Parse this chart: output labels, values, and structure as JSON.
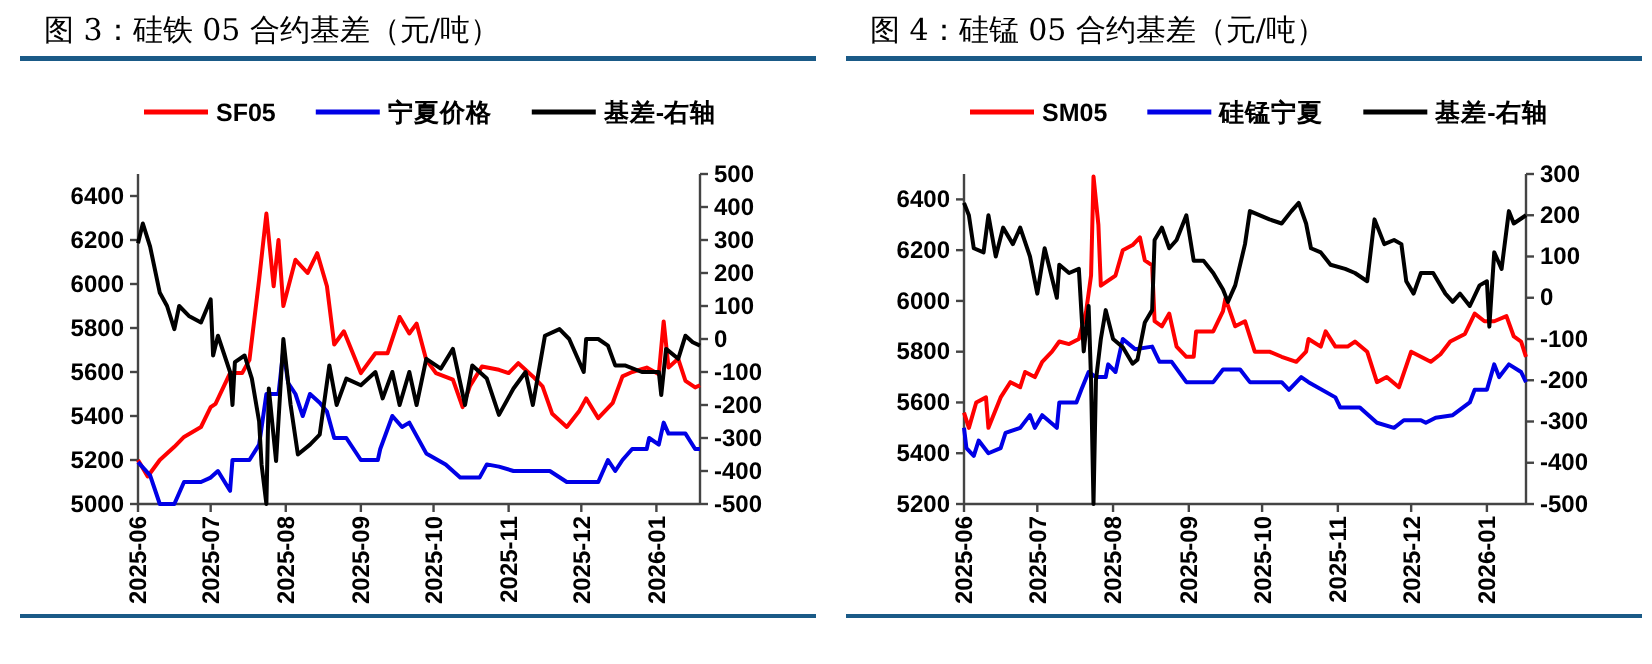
{
  "chart_data": [
    {
      "type": "line",
      "title": "图 3：硅铁 05 合约基差（元/吨）",
      "legend": "top",
      "xlim": [
        "2025-06-01",
        "2026-01-19"
      ],
      "xticks": [
        {
          "value": "2025-06-01",
          "label": "2025-06"
        },
        {
          "value": "2025-07-01",
          "label": "2025-07"
        },
        {
          "value": "2025-08-01",
          "label": "2025-08"
        },
        {
          "value": "2025-09-01",
          "label": "2025-09"
        },
        {
          "value": "2025-10-01",
          "label": "2025-10"
        },
        {
          "value": "2025-11-01",
          "label": "2025-11"
        },
        {
          "value": "2025-12-01",
          "label": "2025-12"
        },
        {
          "value": "2026-01-01",
          "label": "2026-01"
        }
      ],
      "ylim": [
        5000,
        6500
      ],
      "yticks": [
        5000,
        5200,
        5400,
        5600,
        5800,
        6000,
        6200,
        6400
      ],
      "y2lim": [
        -500,
        500
      ],
      "y2ticks": [
        -500,
        -400,
        -300,
        -200,
        -100,
        0,
        100,
        200,
        300,
        400,
        500
      ],
      "series": [
        {
          "name": "SF05",
          "color": "#ff0000",
          "x": [
            "2025-06-01",
            "2025-06-05",
            "2025-06-10",
            "2025-06-16",
            "2025-06-20",
            "2025-06-27",
            "2025-07-01",
            "2025-07-03",
            "2025-07-09",
            "2025-07-14",
            "2025-07-17",
            "2025-07-21",
            "2025-07-24",
            "2025-07-27",
            "2025-07-29",
            "2025-07-31",
            "2025-08-05",
            "2025-08-10",
            "2025-08-14",
            "2025-08-18",
            "2025-08-21",
            "2025-08-25",
            "2025-09-01",
            "2025-09-07",
            "2025-09-12",
            "2025-09-17",
            "2025-09-21",
            "2025-09-24",
            "2025-09-28",
            "2025-10-02",
            "2025-10-09",
            "2025-10-13",
            "2025-10-16",
            "2025-10-21",
            "2025-10-28",
            "2025-11-01",
            "2025-11-05",
            "2025-11-11",
            "2025-11-15",
            "2025-11-19",
            "2025-11-25",
            "2025-11-30",
            "2025-12-03",
            "2025-12-08",
            "2025-12-14",
            "2025-12-18",
            "2025-12-22",
            "2025-12-28",
            "2026-01-02",
            "2026-01-04",
            "2026-01-06",
            "2026-01-10",
            "2026-01-13",
            "2026-01-17",
            "2026-01-19"
          ],
          "values": [
            5200,
            5125,
            5200,
            5260,
            5305,
            5350,
            5440,
            5455,
            5595,
            5595,
            5655,
            6020,
            6320,
            5990,
            6200,
            5900,
            6110,
            6050,
            6140,
            5990,
            5725,
            5785,
            5595,
            5685,
            5685,
            5850,
            5775,
            5820,
            5655,
            5595,
            5565,
            5440,
            5535,
            5625,
            5610,
            5595,
            5640,
            5580,
            5535,
            5410,
            5350,
            5420,
            5480,
            5390,
            5460,
            5580,
            5600,
            5620,
            5590,
            5830,
            5620,
            5660,
            5560,
            5530,
            5540
          ]
        },
        {
          "name": "宁夏价格",
          "color": "#0000e6",
          "x": [
            "2025-06-01",
            "2025-06-06",
            "2025-06-10",
            "2025-06-16",
            "2025-06-20",
            "2025-06-27",
            "2025-07-01",
            "2025-07-04",
            "2025-07-09",
            "2025-07-10",
            "2025-07-17",
            "2025-07-21",
            "2025-07-24",
            "2025-07-29",
            "2025-07-31",
            "2025-08-02",
            "2025-08-05",
            "2025-08-08",
            "2025-08-11",
            "2025-08-15",
            "2025-08-18",
            "2025-08-21",
            "2025-08-26",
            "2025-09-01",
            "2025-09-08",
            "2025-09-09",
            "2025-09-14",
            "2025-09-18",
            "2025-09-21",
            "2025-09-28",
            "2025-10-06",
            "2025-10-12",
            "2025-10-20",
            "2025-10-23",
            "2025-10-28",
            "2025-11-03",
            "2025-11-11",
            "2025-11-18",
            "2025-11-25",
            "2025-12-08",
            "2025-12-12",
            "2025-12-15",
            "2025-12-18",
            "2025-12-22",
            "2025-12-28",
            "2025-12-29",
            "2026-01-02",
            "2026-01-04",
            "2026-01-06",
            "2026-01-13",
            "2026-01-17",
            "2026-01-19"
          ],
          "values": [
            5190,
            5130,
            5000,
            5000,
            5100,
            5100,
            5120,
            5150,
            5060,
            5200,
            5200,
            5270,
            5500,
            5500,
            5700,
            5550,
            5500,
            5400,
            5500,
            5460,
            5420,
            5300,
            5300,
            5200,
            5200,
            5250,
            5400,
            5350,
            5370,
            5230,
            5180,
            5120,
            5120,
            5180,
            5170,
            5150,
            5150,
            5150,
            5100,
            5100,
            5200,
            5150,
            5200,
            5250,
            5250,
            5300,
            5270,
            5370,
            5320,
            5320,
            5250,
            5250
          ]
        },
        {
          "name": "基差-右轴",
          "color": "#000000",
          "axis": "y2",
          "x": [
            "2025-06-01",
            "2025-06-03",
            "2025-06-06",
            "2025-06-10",
            "2025-06-13",
            "2025-06-16",
            "2025-06-18",
            "2025-06-22",
            "2025-06-27",
            "2025-07-01",
            "2025-07-02",
            "2025-07-04",
            "2025-07-09",
            "2025-07-10",
            "2025-07-11",
            "2025-07-15",
            "2025-07-18",
            "2025-07-21",
            "2025-07-22",
            "2025-07-24",
            "2025-07-25",
            "2025-07-28",
            "2025-07-31",
            "2025-08-03",
            "2025-08-06",
            "2025-08-11",
            "2025-08-15",
            "2025-08-19",
            "2025-08-22",
            "2025-08-26",
            "2025-09-01",
            "2025-09-07",
            "2025-09-10",
            "2025-09-14",
            "2025-09-17",
            "2025-09-21",
            "2025-09-24",
            "2025-09-28",
            "2025-10-04",
            "2025-10-09",
            "2025-10-14",
            "2025-10-17",
            "2025-10-23",
            "2025-10-28",
            "2025-11-03",
            "2025-11-08",
            "2025-11-11",
            "2025-11-16",
            "2025-11-22",
            "2025-11-26",
            "2025-12-02",
            "2025-12-03",
            "2025-12-08",
            "2025-12-12",
            "2025-12-15",
            "2025-12-19",
            "2025-12-26",
            "2026-01-02",
            "2026-01-03",
            "2026-01-05",
            "2026-01-10",
            "2026-01-13",
            "2026-01-16",
            "2026-01-19"
          ],
          "values": [
            290,
            350,
            280,
            140,
            100,
            30,
            100,
            70,
            50,
            120,
            -50,
            10,
            -100,
            -200,
            -70,
            -50,
            -120,
            -250,
            -380,
            -500,
            -150,
            -370,
            0,
            -200,
            -350,
            -320,
            -290,
            -80,
            -200,
            -120,
            -140,
            -100,
            -180,
            -100,
            -200,
            -100,
            -200,
            -60,
            -90,
            -30,
            -200,
            -80,
            -120,
            -230,
            -150,
            -100,
            -200,
            10,
            30,
            0,
            -100,
            0,
            0,
            -20,
            -80,
            -80,
            -100,
            -100,
            -170,
            -30,
            -60,
            10,
            -10,
            -20
          ]
        }
      ]
    },
    {
      "type": "line",
      "title": "图 4：硅锰 05 合约基差（元/吨）",
      "legend": "top",
      "xlim": [
        "2025-06-01",
        "2026-01-17"
      ],
      "xticks": [
        {
          "value": "2025-06-01",
          "label": "2025-06"
        },
        {
          "value": "2025-07-01",
          "label": "2025-07"
        },
        {
          "value": "2025-08-01",
          "label": "2025-08"
        },
        {
          "value": "2025-09-01",
          "label": "2025-09"
        },
        {
          "value": "2025-10-01",
          "label": "2025-10"
        },
        {
          "value": "2025-11-01",
          "label": "2025-11"
        },
        {
          "value": "2025-12-01",
          "label": "2025-12"
        },
        {
          "value": "2026-01-01",
          "label": "2026-01"
        }
      ],
      "ylim": [
        5200,
        6500
      ],
      "yticks": [
        5200,
        5400,
        5600,
        5800,
        6000,
        6200,
        6400
      ],
      "y2lim": [
        -500,
        300
      ],
      "y2ticks": [
        -500,
        -400,
        -300,
        -200,
        -100,
        0,
        100,
        200,
        300
      ],
      "series": [
        {
          "name": "SM05",
          "color": "#ff0000",
          "x": [
            "2025-06-01",
            "2025-06-03",
            "2025-06-06",
            "2025-06-10",
            "2025-06-11",
            "2025-06-16",
            "2025-06-20",
            "2025-06-24",
            "2025-06-26",
            "2025-06-30",
            "2025-07-03",
            "2025-07-07",
            "2025-07-10",
            "2025-07-14",
            "2025-07-18",
            "2025-07-21",
            "2025-07-23",
            "2025-07-24",
            "2025-07-26",
            "2025-07-27",
            "2025-07-30",
            "2025-08-02",
            "2025-08-05",
            "2025-08-09",
            "2025-08-12",
            "2025-08-14",
            "2025-08-17",
            "2025-08-18",
            "2025-08-21",
            "2025-08-24",
            "2025-08-27",
            "2025-08-31",
            "2025-09-03",
            "2025-09-04",
            "2025-09-11",
            "2025-09-15",
            "2025-09-16",
            "2025-09-20",
            "2025-09-24",
            "2025-09-28",
            "2025-10-04",
            "2025-10-09",
            "2025-10-15",
            "2025-10-19",
            "2025-10-20",
            "2025-10-25",
            "2025-10-27",
            "2025-10-31",
            "2025-11-05",
            "2025-11-08",
            "2025-11-13",
            "2025-11-17",
            "2025-11-21",
            "2025-11-26",
            "2025-12-01",
            "2025-12-05",
            "2025-12-09",
            "2025-12-13",
            "2025-12-17",
            "2025-12-23",
            "2025-12-27",
            "2025-12-31",
            "2026-01-04",
            "2026-01-09",
            "2026-01-12",
            "2026-01-15",
            "2026-01-17"
          ],
          "values": [
            5560,
            5500,
            5600,
            5620,
            5500,
            5620,
            5680,
            5660,
            5720,
            5700,
            5760,
            5800,
            5840,
            5830,
            5850,
            5960,
            6100,
            6490,
            6300,
            6060,
            6080,
            6100,
            6200,
            6220,
            6250,
            6160,
            6140,
            5920,
            5900,
            5950,
            5820,
            5780,
            5780,
            5880,
            5880,
            5960,
            6010,
            5900,
            5920,
            5800,
            5800,
            5780,
            5760,
            5800,
            5850,
            5820,
            5880,
            5820,
            5820,
            5840,
            5800,
            5680,
            5700,
            5660,
            5800,
            5780,
            5760,
            5790,
            5840,
            5870,
            5950,
            5920,
            5920,
            5940,
            5860,
            5840,
            5780
          ]
        },
        {
          "name": "硅锰宁夏",
          "color": "#0000e6",
          "x": [
            "2025-06-01",
            "2025-06-02",
            "2025-06-05",
            "2025-06-07",
            "2025-06-11",
            "2025-06-16",
            "2025-06-18",
            "2025-06-24",
            "2025-06-28",
            "2025-06-30",
            "2025-07-03",
            "2025-07-09",
            "2025-07-10",
            "2025-07-17",
            "2025-07-19",
            "2025-07-22",
            "2025-07-25",
            "2025-07-29",
            "2025-07-30",
            "2025-08-02",
            "2025-08-05",
            "2025-08-10",
            "2025-08-17",
            "2025-08-20",
            "2025-08-25",
            "2025-08-31",
            "2025-09-11",
            "2025-09-15",
            "2025-09-22",
            "2025-09-26",
            "2025-10-09",
            "2025-10-12",
            "2025-10-17",
            "2025-10-20",
            "2025-10-31",
            "2025-11-02",
            "2025-11-10",
            "2025-11-17",
            "2025-11-24",
            "2025-11-28",
            "2025-12-05",
            "2025-12-07",
            "2025-12-11",
            "2025-12-18",
            "2025-12-25",
            "2025-12-27",
            "2026-01-01",
            "2026-01-04",
            "2026-01-06",
            "2026-01-10",
            "2026-01-15",
            "2026-01-17"
          ],
          "values": [
            5500,
            5420,
            5390,
            5450,
            5400,
            5420,
            5480,
            5500,
            5550,
            5500,
            5550,
            5500,
            5600,
            5600,
            5650,
            5720,
            5700,
            5700,
            5750,
            5720,
            5850,
            5810,
            5820,
            5760,
            5760,
            5680,
            5680,
            5730,
            5730,
            5680,
            5680,
            5650,
            5700,
            5680,
            5620,
            5580,
            5580,
            5520,
            5500,
            5530,
            5530,
            5520,
            5540,
            5550,
            5600,
            5650,
            5650,
            5750,
            5700,
            5750,
            5720,
            5680
          ]
        },
        {
          "name": "基差-右轴",
          "color": "#000000",
          "axis": "y2",
          "x": [
            "2025-06-01",
            "2025-06-03",
            "2025-06-05",
            "2025-06-09",
            "2025-06-11",
            "2025-06-14",
            "2025-06-17",
            "2025-06-21",
            "2025-06-24",
            "2025-06-28",
            "2025-07-01",
            "2025-07-04",
            "2025-07-09",
            "2025-07-10",
            "2025-07-14",
            "2025-07-18",
            "2025-07-20",
            "2025-07-22",
            "2025-07-23",
            "2025-07-24",
            "2025-07-25",
            "2025-07-27",
            "2025-07-29",
            "2025-08-01",
            "2025-08-05",
            "2025-08-09",
            "2025-08-11",
            "2025-08-14",
            "2025-08-17",
            "2025-08-18",
            "2025-08-21",
            "2025-08-24",
            "2025-08-27",
            "2025-08-31",
            "2025-09-03",
            "2025-09-07",
            "2025-09-11",
            "2025-09-15",
            "2025-09-17",
            "2025-09-20",
            "2025-09-24",
            "2025-09-26",
            "2025-10-04",
            "2025-10-09",
            "2025-10-13",
            "2025-10-16",
            "2025-10-19",
            "2025-10-21",
            "2025-10-25",
            "2025-10-29",
            "2025-11-04",
            "2025-11-08",
            "2025-11-13",
            "2025-11-16",
            "2025-11-20",
            "2025-11-24",
            "2025-11-27",
            "2025-11-29",
            "2025-12-02",
            "2025-12-05",
            "2025-12-10",
            "2025-12-15",
            "2025-12-18",
            "2025-12-21",
            "2025-12-25",
            "2025-12-29",
            "2026-01-01",
            "2026-01-02",
            "2026-01-04",
            "2026-01-07",
            "2026-01-10",
            "2026-01-12",
            "2026-01-17"
          ],
          "values": [
            230,
            200,
            120,
            110,
            200,
            100,
            170,
            130,
            170,
            100,
            10,
            120,
            0,
            80,
            60,
            70,
            -130,
            -20,
            -200,
            -500,
            -200,
            -100,
            -30,
            -100,
            -120,
            -160,
            -150,
            -60,
            -30,
            140,
            170,
            120,
            140,
            200,
            90,
            90,
            60,
            20,
            -10,
            30,
            130,
            210,
            190,
            180,
            210,
            230,
            180,
            120,
            110,
            80,
            70,
            60,
            40,
            190,
            130,
            140,
            130,
            40,
            10,
            60,
            60,
            10,
            -10,
            10,
            -20,
            30,
            40,
            -70,
            110,
            70,
            210,
            180,
            200
          ]
        }
      ]
    }
  ]
}
